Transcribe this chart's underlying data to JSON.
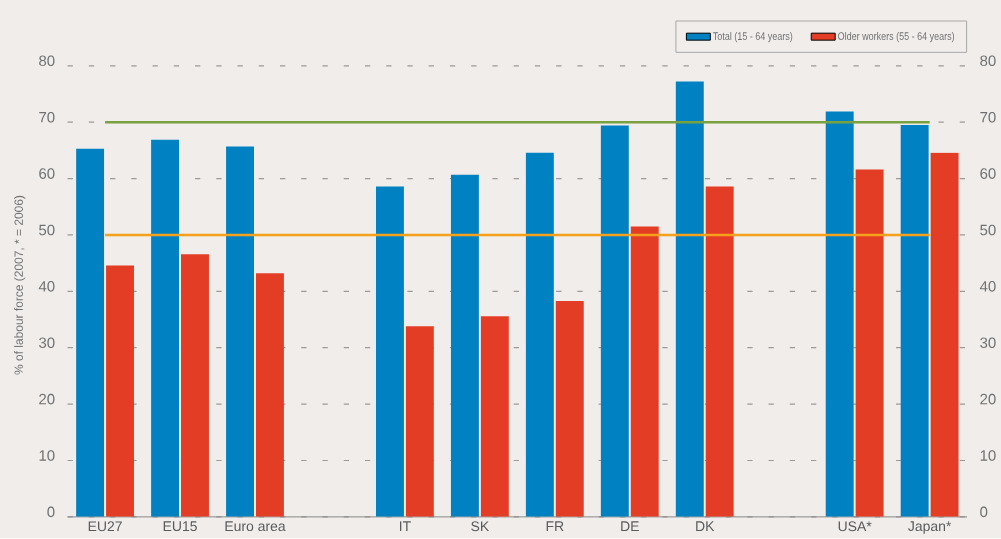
{
  "chart_data": {
    "type": "bar",
    "ylabel": "% of labour force (2007, * = 2006)",
    "categories": [
      "EU27",
      "EU15",
      "Euro area",
      null,
      "IT",
      "SK",
      "FR",
      "DE",
      "DK",
      null,
      "USA*",
      "Japan*"
    ],
    "series": [
      {
        "name": "Total (15 - 64 years)",
        "color": "#0081c2",
        "values": [
          65.3,
          66.9,
          65.7,
          null,
          58.6,
          60.7,
          64.6,
          69.4,
          77.2,
          null,
          71.9,
          69.5
        ]
      },
      {
        "name": "Older workers (55 - 64 years)",
        "color": "#e43d26",
        "values": [
          44.6,
          46.6,
          43.2,
          null,
          33.8,
          35.6,
          38.3,
          51.5,
          58.6,
          null,
          61.6,
          64.6
        ]
      }
    ],
    "ylim": [
      0,
      80
    ],
    "yticks": [
      0,
      10,
      20,
      30,
      40,
      50,
      60,
      70,
      80
    ],
    "y2lim": [
      0,
      80
    ],
    "y2ticks": [
      0,
      10,
      20,
      30,
      40,
      50,
      60,
      70,
      80
    ],
    "grid": "y",
    "legend": "top right",
    "ref_lines": [
      {
        "axis": "y",
        "value": 70,
        "color": "#78a23f"
      },
      {
        "axis": "y",
        "value": 50,
        "color": "#f5a11b"
      }
    ]
  }
}
